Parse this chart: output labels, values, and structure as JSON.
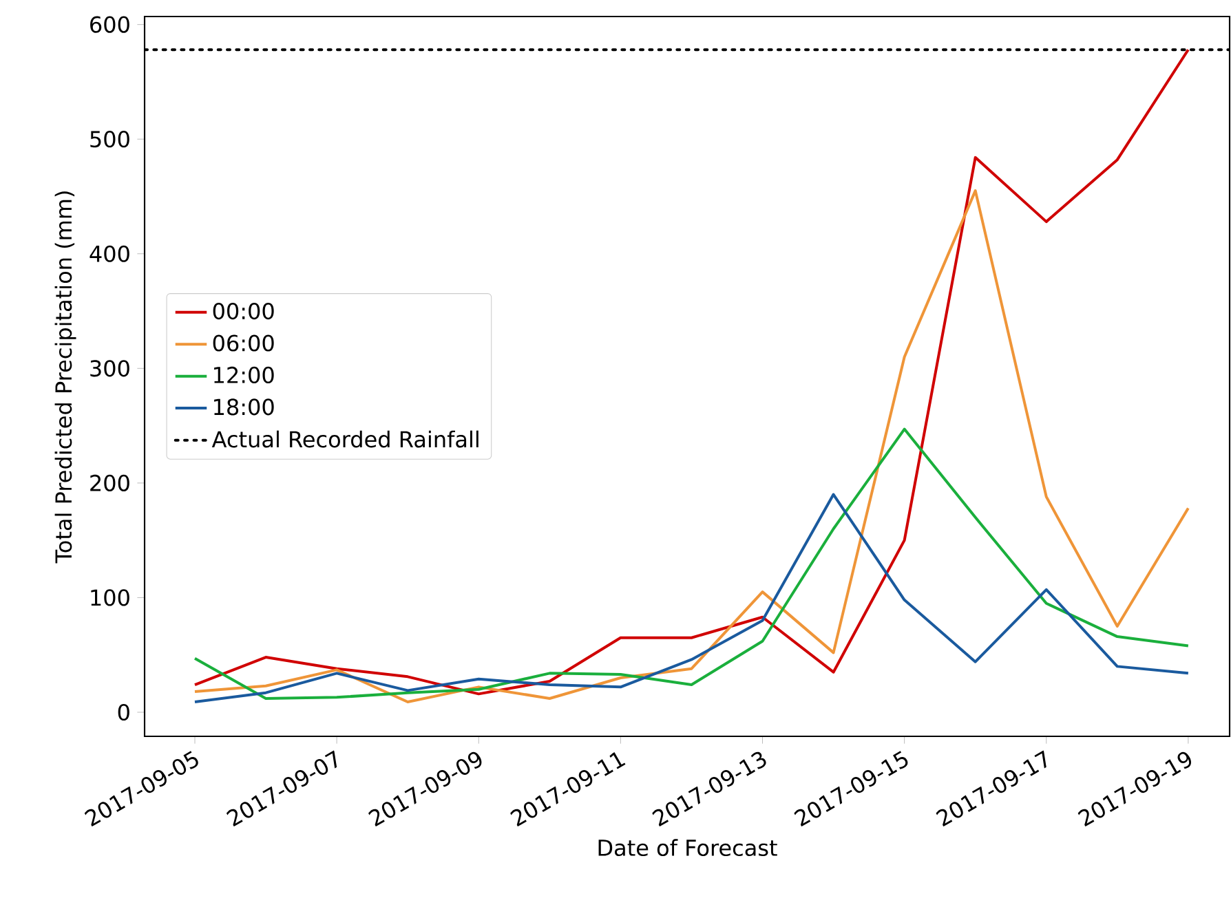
{
  "chart_data": {
    "type": "line",
    "xlabel": "Date of Forecast",
    "ylabel": "Total Predicted Precipitation (mm)",
    "x": [
      "2017-09-05",
      "2017-09-06",
      "2017-09-07",
      "2017-09-08",
      "2017-09-09",
      "2017-09-10",
      "2017-09-11",
      "2017-09-12",
      "2017-09-13",
      "2017-09-14",
      "2017-09-15",
      "2017-09-16",
      "2017-09-17",
      "2017-09-18",
      "2017-09-19"
    ],
    "series": [
      {
        "name": "00:00",
        "color": "#d00000",
        "values": [
          24,
          48,
          38,
          31,
          16,
          27,
          65,
          65,
          83,
          35,
          150,
          484,
          428,
          482,
          578
        ]
      },
      {
        "name": "06:00",
        "color": "#ef9538",
        "values": [
          18,
          23,
          37,
          9,
          22,
          12,
          30,
          38,
          105,
          52,
          310,
          455,
          188,
          75,
          178
        ]
      },
      {
        "name": "12:00",
        "color": "#1aaf3c",
        "values": [
          47,
          12,
          13,
          17,
          20,
          34,
          33,
          24,
          62,
          160,
          247,
          170,
          95,
          66,
          58
        ]
      },
      {
        "name": "18:00",
        "color": "#1a5a9e",
        "values": [
          9,
          17,
          34,
          19,
          29,
          24,
          22,
          46,
          80,
          190,
          98,
          44,
          107,
          40,
          34
        ]
      }
    ],
    "ref_lines": [
      {
        "axis": "y",
        "value": 578,
        "label": "Actual Recorded Rainfall",
        "color": "#000000",
        "line_style": "dotted"
      }
    ],
    "xlim": [
      "2017-09-04T07:00",
      "2017-09-19T14:00"
    ],
    "ylim": [
      -21,
      607
    ],
    "xticks": [
      "2017-09-05",
      "2017-09-07",
      "2017-09-09",
      "2017-09-11",
      "2017-09-13",
      "2017-09-15",
      "2017-09-17",
      "2017-09-19"
    ],
    "yticks": [
      0,
      100,
      200,
      300,
      400,
      500,
      600
    ],
    "grid": false,
    "legend": "left",
    "marker": "none",
    "line_style": "solid"
  }
}
